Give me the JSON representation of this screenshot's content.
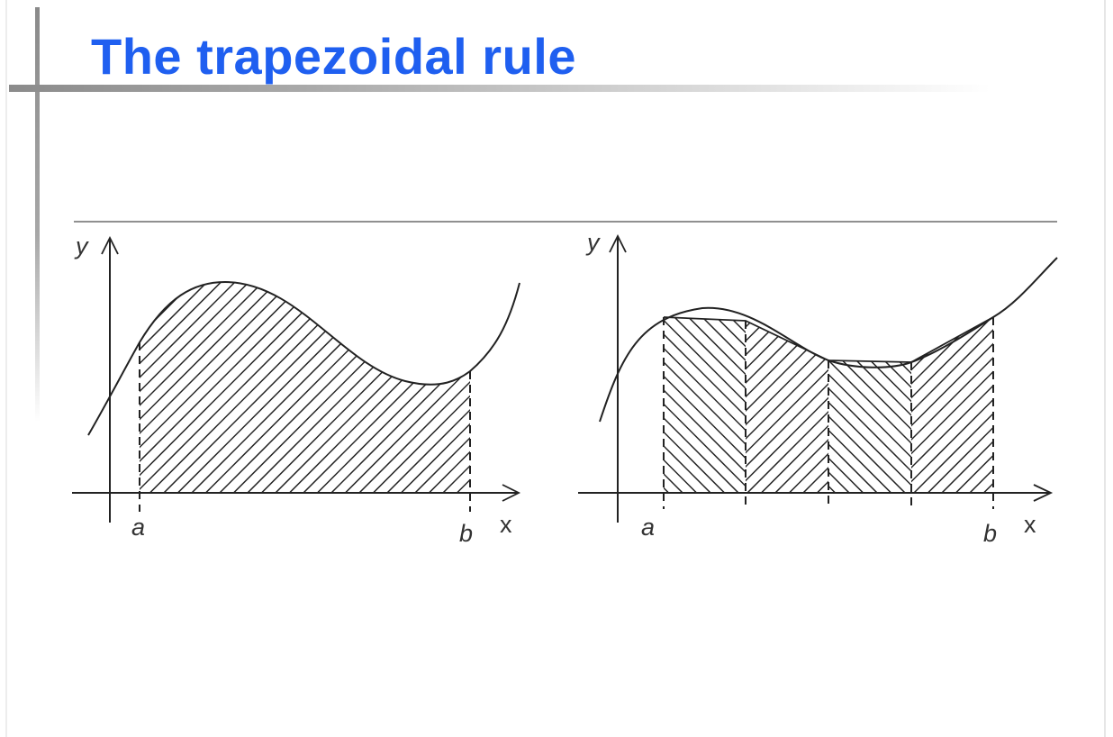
{
  "slide": {
    "title": "The trapezoidal rule"
  },
  "left_plot": {
    "y_label": "y",
    "x_label": "x",
    "a_label": "a",
    "b_label": "b"
  },
  "right_plot": {
    "y_label": "y",
    "x_label": "x",
    "a_label": "a",
    "b_label": "b"
  },
  "colors": {
    "title": "#1f5ff0",
    "ink": "#222222"
  }
}
